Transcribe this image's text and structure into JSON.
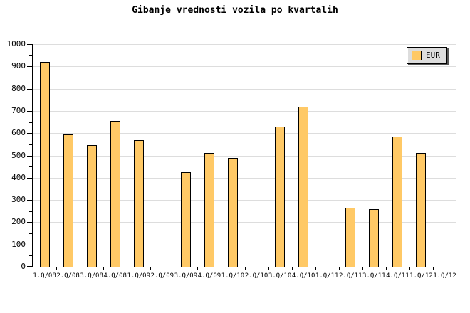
{
  "header": {
    "title": "Gibanje vrednosti vozila po kvartalih"
  },
  "legend": {
    "label": "EUR",
    "swatch_color": "#FFC966"
  },
  "colors": {
    "background": "#FFFFFF",
    "bar_fill": "#FFC966",
    "bar_border": "#000000",
    "gridline": "#DDDDDD",
    "axis": "#000000",
    "legend_background": "#DDDDDD",
    "legend_shadow": "#555555",
    "text": "#000000"
  },
  "chart_data": {
    "type": "bar",
    "title": "Gibanje vrednosti vozila po kvartalih",
    "categories": [
      "1.Q/08",
      "2.Q/08",
      "3.Q/08",
      "4.Q/08",
      "1.Q/09",
      "2.Q/09",
      "3.Q/09",
      "4.Q/09",
      "1.Q/10",
      "2.Q/10",
      "3.Q/10",
      "4.Q/10",
      "1.Q/11",
      "2.Q/11",
      "3.Q/11",
      "4.Q/11",
      "1.Q/12",
      "1.Q/12"
    ],
    "series": [
      {
        "name": "EUR",
        "values": [
          920,
          595,
          545,
          655,
          570,
          0,
          425,
          510,
          490,
          0,
          630,
          720,
          0,
          265,
          260,
          585,
          510,
          0
        ]
      }
    ],
    "xlabel": "",
    "ylabel": "",
    "ylim": [
      0,
      1000
    ],
    "ytick_step": 100,
    "minor_ytick_step": 50,
    "grid": true,
    "legend_position": "top-right",
    "bar_color": "#FFC966",
    "bar_border_color": "#000000"
  }
}
